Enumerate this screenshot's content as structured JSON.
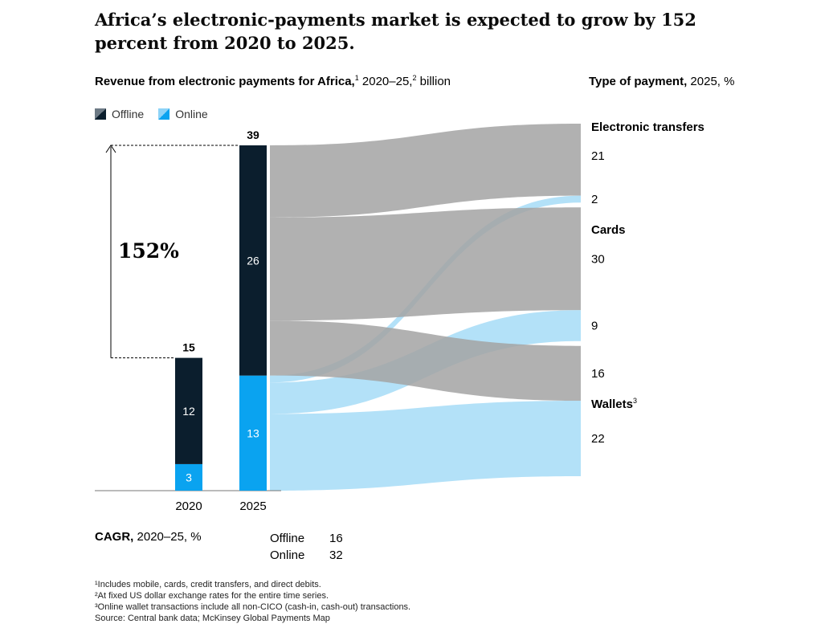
{
  "header": {
    "title": "Africa’s electronic-payments market is expected to grow by 152 percent from 2020 to 2025.",
    "left_subtitle_bold": "Revenue from electronic payments for Africa,",
    "left_subtitle_sup1": "1",
    "left_subtitle_mid": " 2020–25,",
    "left_subtitle_sup2": "2",
    "left_subtitle_end": " billion",
    "right_subtitle_bold": "Type of payment,",
    "right_subtitle_end": " 2025, %"
  },
  "legend": {
    "offline": "Offline",
    "online": "Online"
  },
  "growth_label": "152%",
  "cagr": {
    "label_bold": "CAGR,",
    "label_end": " 2020–25, %",
    "rows": [
      {
        "name": "Offline",
        "value": "16"
      },
      {
        "name": "Online",
        "value": "32"
      }
    ]
  },
  "footnotes": [
    "¹Includes mobile, cards, credit transfers, and direct debits.",
    "²At fixed US dollar exchange rates for the entire time series.",
    "³Online wallet transactions include all non-CICO (cash-in, cash-out) transactions.",
    " Source: Central bank data; McKinsey Global Payments Map"
  ],
  "colors": {
    "offline": "#0b1e2d",
    "online": "#0aa3f0",
    "flow_offline": "#a3a3a3",
    "flow_online": "#a6dcf7"
  },
  "chart_data": {
    "type": "bar",
    "title": "Revenue from electronic payments for Africa, 2020–25, billion",
    "categories": [
      "2020",
      "2025"
    ],
    "series": [
      {
        "name": "Offline",
        "values": [
          12,
          26
        ]
      },
      {
        "name": "Online",
        "values": [
          3,
          13
        ]
      }
    ],
    "totals": [
      15,
      39
    ],
    "ylim": [
      0,
      39
    ],
    "sankey": {
      "title": "Type of payment, 2025, %",
      "groups": [
        {
          "name": "Electronic transfers",
          "sup": "",
          "offline": 21,
          "online": 2
        },
        {
          "name": "Cards",
          "sup": "",
          "offline": 30,
          "online": 9
        },
        {
          "name": "Wallets",
          "sup": "3",
          "offline": 16,
          "online": 22
        }
      ]
    }
  }
}
